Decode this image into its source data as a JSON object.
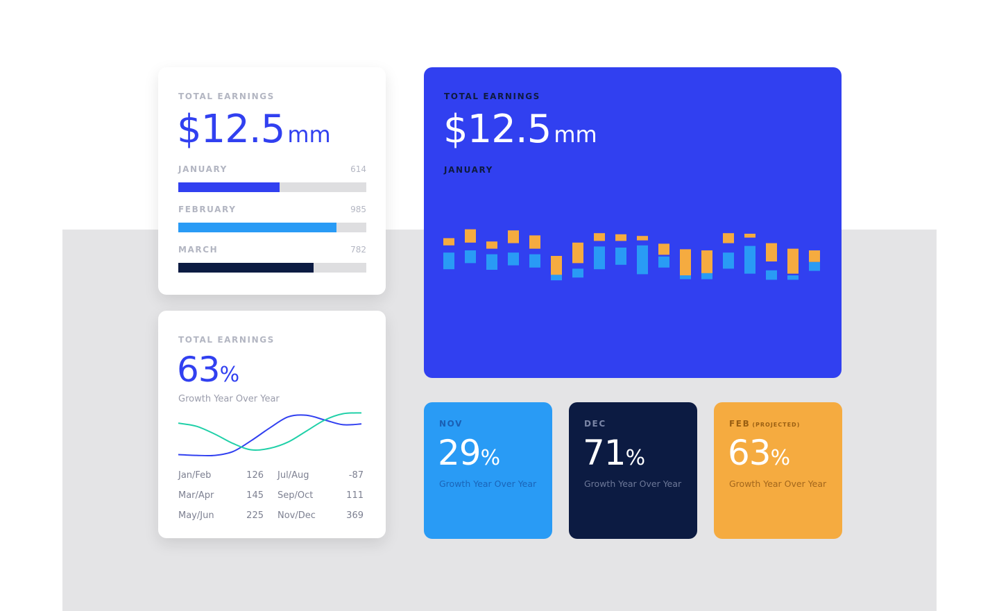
{
  "colors": {
    "accent_blue": "#3140f0",
    "light_blue": "#299bf5",
    "navy": "#0c1b42",
    "orange": "#f5ab40",
    "track_gray": "#dedee0"
  },
  "card_bars": {
    "title": "TOTAL EARNINGS",
    "amount": "$12.5",
    "unit": "mm",
    "months": [
      {
        "label": "JANUARY",
        "value": "614",
        "fill_pct": 54,
        "color": "#3140f0"
      },
      {
        "label": "FEBRUARY",
        "value": "985",
        "fill_pct": 84,
        "color": "#299bf5"
      },
      {
        "label": "MARCH",
        "value": "782",
        "fill_pct": 72,
        "color": "#0c1b42"
      }
    ]
  },
  "card_growth": {
    "title": "TOTAL EARNINGS",
    "percent": "63",
    "percent_sign": "%",
    "subtitle": "Growth Year Over Year",
    "stats": [
      {
        "label": "Jan/Feb",
        "value": "126"
      },
      {
        "label": "Mar/Apr",
        "value": "145"
      },
      {
        "label": "May/Jun",
        "value": "225"
      },
      {
        "label": "Jul/Aug",
        "value": "-87"
      },
      {
        "label": "Sep/Oct",
        "value": "111"
      },
      {
        "label": "Nov/Dec",
        "value": "369"
      }
    ]
  },
  "card_main": {
    "title": "TOTAL EARNINGS",
    "amount": "$12.5",
    "unit": "mm",
    "month": "JANUARY"
  },
  "small_cards": [
    {
      "month": "NOV",
      "qualifier": "",
      "percent": "29",
      "percent_sign": "%",
      "subtitle": "Growth Year Over Year"
    },
    {
      "month": "DEC",
      "qualifier": "",
      "percent": "71",
      "percent_sign": "%",
      "subtitle": "Growth Year Over Year"
    },
    {
      "month": "FEB",
      "qualifier": "(PROJECTED)",
      "percent": "63",
      "percent_sign": "%",
      "subtitle": "Growth Year Over Year"
    }
  ],
  "chart_data": [
    {
      "type": "line",
      "title": "",
      "x": [
        0,
        1,
        2,
        3,
        4,
        5,
        6,
        7,
        8,
        9,
        10
      ],
      "ylim": [
        0,
        60
      ],
      "series": [
        {
          "name": "blue",
          "color": "#3140f0",
          "values": [
            4,
            3,
            3,
            8,
            22,
            38,
            52,
            54,
            48,
            42,
            43
          ]
        },
        {
          "name": "teal",
          "color": "#20d0a8",
          "values": [
            44,
            40,
            30,
            18,
            10,
            12,
            20,
            34,
            48,
            56,
            57
          ]
        }
      ]
    },
    {
      "type": "bar",
      "title": "",
      "categories": [
        "1",
        "2",
        "3",
        "4",
        "5",
        "6",
        "7",
        "8",
        "9",
        "10",
        "11",
        "12",
        "13",
        "14",
        "15",
        "16",
        "17",
        "18"
      ],
      "ylim": [
        -4,
        16
      ],
      "series": [
        {
          "name": "orange",
          "color": "#f5ab40",
          "ranges": [
            [
              6.4,
              7.7
            ],
            [
              6.9,
              9.3
            ],
            [
              5.8,
              7.1
            ],
            [
              6.8,
              9.1
            ],
            [
              5.8,
              8.2
            ],
            [
              0.9,
              4.5
            ],
            [
              3.2,
              6.9
            ],
            [
              7.2,
              8.6
            ],
            [
              7.2,
              8.4
            ],
            [
              7.3,
              8.1
            ],
            [
              4.7,
              6.7
            ],
            [
              0.5,
              5.7
            ],
            [
              1.0,
              5.5
            ],
            [
              6.8,
              8.6
            ],
            [
              7.8,
              8.5
            ],
            [
              3.5,
              6.8
            ],
            [
              1.3,
              5.8
            ],
            [
              3.4,
              5.5
            ]
          ]
        },
        {
          "name": "blue",
          "color": "#299bf5",
          "ranges": [
            [
              2.1,
              5.1
            ],
            [
              3.2,
              5.5
            ],
            [
              2.0,
              4.8
            ],
            [
              2.8,
              5.1
            ],
            [
              2.4,
              4.8
            ],
            [
              0.1,
              1.1
            ],
            [
              0.6,
              2.2
            ],
            [
              2.1,
              6.2
            ],
            [
              2.9,
              6.0
            ],
            [
              1.2,
              6.4
            ],
            [
              2.4,
              4.4
            ],
            [
              0.3,
              1.0
            ],
            [
              0.3,
              1.4
            ],
            [
              2.2,
              5.1
            ],
            [
              1.3,
              6.3
            ],
            [
              0.2,
              1.9
            ],
            [
              0.2,
              1.0
            ],
            [
              1.8,
              3.4
            ]
          ]
        }
      ]
    }
  ]
}
